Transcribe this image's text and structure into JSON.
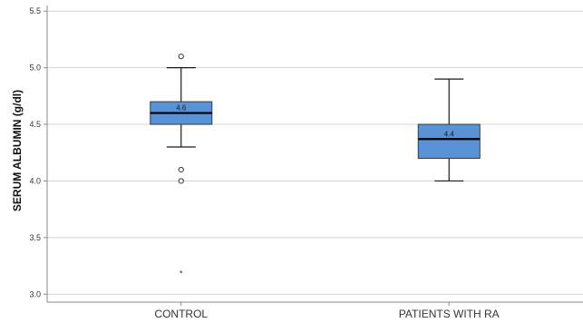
{
  "chart_data": {
    "type": "boxplot",
    "title": "",
    "xlabel": "",
    "ylabel": "SERUM ALBUMIN (g/dl)",
    "ylim": [
      2.93,
      5.55
    ],
    "yticks": [
      "3.0",
      "3.5",
      "4.0",
      "4.5",
      "5.0",
      "5.5"
    ],
    "grid": "horizontal",
    "box_color": "#5a92d8",
    "categories": [
      "CONTROL",
      "PATIENTS WITH RA"
    ],
    "boxes": [
      {
        "category": "CONTROL",
        "whisker_low": 4.3,
        "q1": 4.5,
        "median": 4.6,
        "q3": 4.7,
        "whisker_high": 5.0,
        "median_label": "4.6",
        "outliers": [
          5.1,
          4.1,
          4.0
        ],
        "extremes": [
          3.2
        ]
      },
      {
        "category": "PATIENTS WITH RA",
        "whisker_low": 4.0,
        "q1": 4.2,
        "median": 4.37,
        "q3": 4.5,
        "whisker_high": 4.9,
        "median_label": "4.4",
        "outliers": [],
        "extremes": []
      }
    ]
  }
}
